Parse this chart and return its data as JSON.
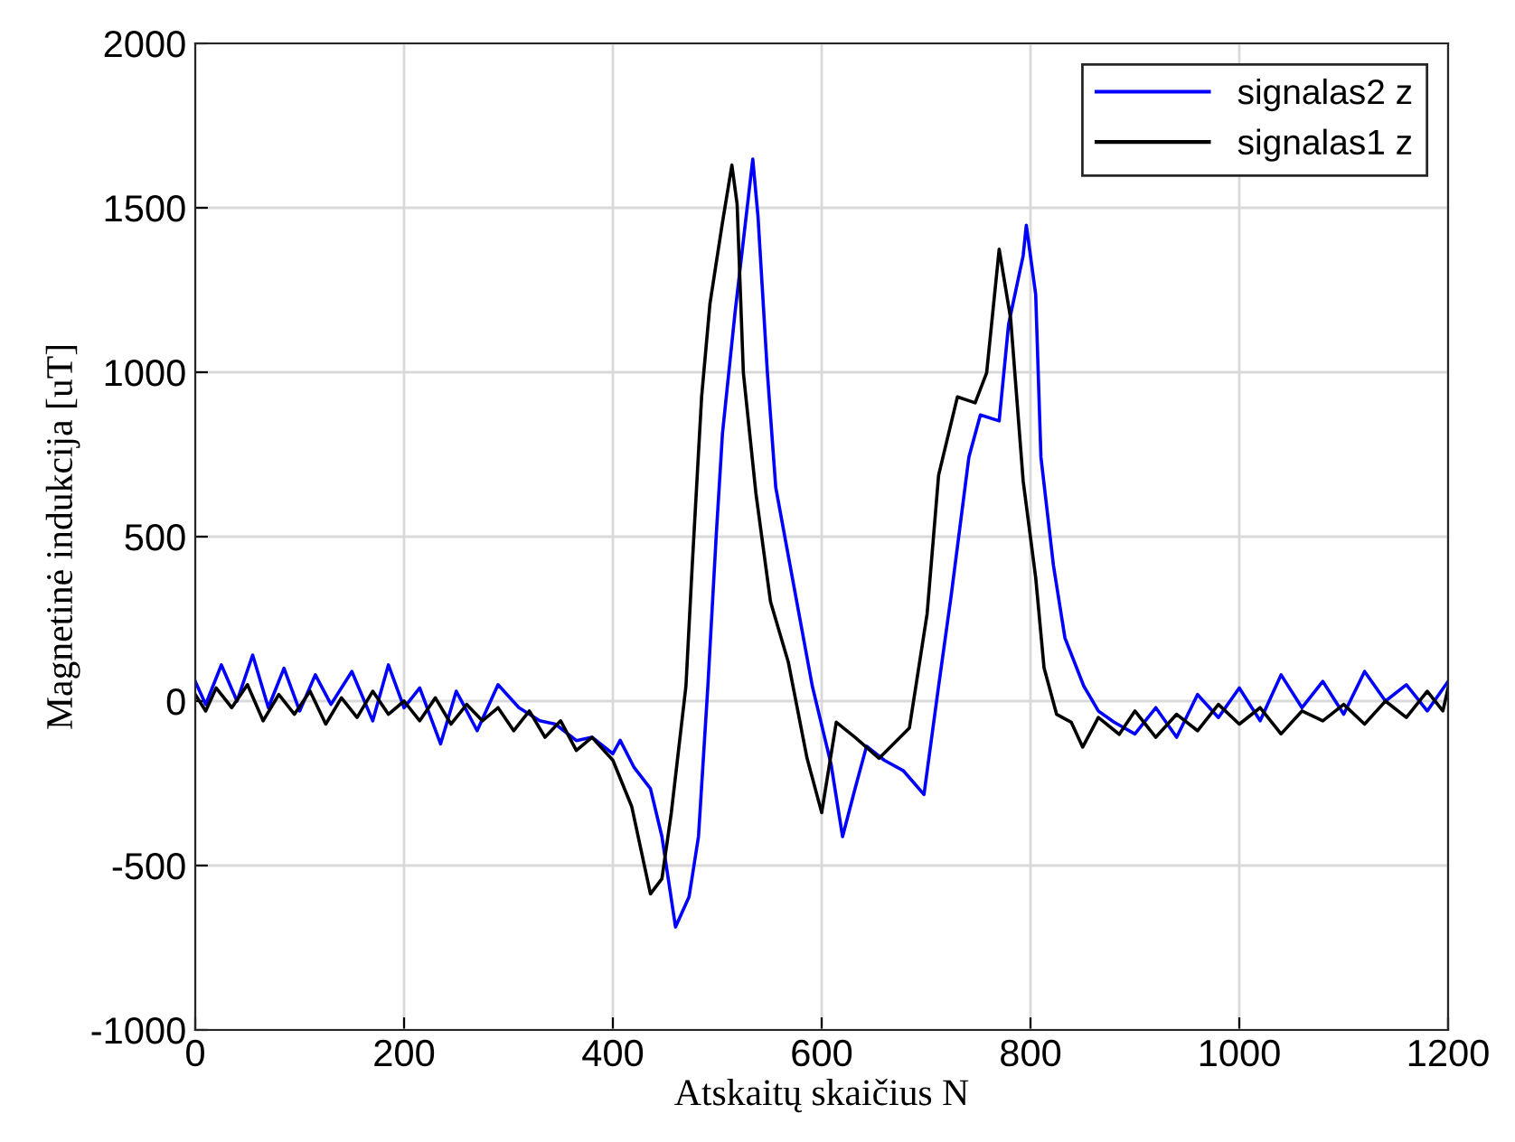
{
  "chart_data": {
    "type": "line",
    "xlabel": "Atskaitų skaičius N",
    "ylabel": "Magnetinė indukcija [uT]",
    "xlim": [
      0,
      1200
    ],
    "xticks": [
      0,
      200,
      400,
      600,
      800,
      1000,
      1200
    ],
    "ylim": [
      -1000,
      2000
    ],
    "yticks": [
      -1000,
      -500,
      0,
      500,
      1000,
      1500,
      2000
    ],
    "grid": true,
    "legend": "top right",
    "marker": "none",
    "line_style": "solid",
    "series": [
      {
        "name": "signalas2 z",
        "color": "#0000ff",
        "x": [
          0,
          10,
          25,
          40,
          55,
          70,
          85,
          100,
          115,
          130,
          150,
          170,
          185,
          200,
          215,
          235,
          250,
          270,
          290,
          310,
          330,
          345,
          365,
          380,
          400,
          407,
          420,
          436,
          447,
          460,
          473,
          482,
          491,
          499,
          505,
          517,
          534,
          539,
          548,
          556,
          574,
          591,
          609,
          620,
          632,
          643,
          660,
          678,
          698,
          712,
          724,
          741,
          752,
          770,
          779,
          793,
          796,
          805,
          810,
          822,
          833,
          851,
          865,
          880,
          900,
          920,
          940,
          960,
          980,
          1000,
          1020,
          1040,
          1060,
          1080,
          1100,
          1120,
          1140,
          1160,
          1180,
          1200
        ],
        "values": [
          60,
          -10,
          110,
          0,
          140,
          -20,
          100,
          -30,
          80,
          -10,
          90,
          -60,
          110,
          -20,
          40,
          -130,
          30,
          -90,
          50,
          -20,
          -60,
          -70,
          -120,
          -110,
          -160,
          -119,
          -200,
          -266,
          -412,
          -687,
          -595,
          -412,
          46,
          504,
          815,
          1181,
          1648,
          1474,
          998,
          650,
          339,
          46,
          -192,
          -412,
          -266,
          -137,
          -180,
          -211,
          -284,
          46,
          320,
          742,
          870,
          852,
          1145,
          1355,
          1447,
          1236,
          742,
          412,
          192,
          46,
          -30,
          -64,
          -100,
          -20,
          -110,
          20,
          -50,
          40,
          -60,
          80,
          -20,
          60,
          -40,
          90,
          0,
          50,
          -30,
          60
        ]
      },
      {
        "name": "signalas1 z",
        "color": "#000000",
        "x": [
          0,
          10,
          20,
          35,
          50,
          65,
          80,
          95,
          110,
          125,
          140,
          155,
          170,
          185,
          200,
          215,
          230,
          245,
          260,
          275,
          290,
          305,
          320,
          335,
          350,
          365,
          380,
          400,
          418,
          436,
          447,
          456,
          470,
          476,
          485,
          493,
          505,
          514,
          519,
          525,
          537,
          551,
          568,
          586,
          600,
          614,
          632,
          655,
          684,
          701,
          712,
          730,
          747,
          758,
          770,
          781,
          793,
          805,
          813,
          825,
          839,
          850,
          865,
          885,
          900,
          920,
          940,
          960,
          980,
          1000,
          1020,
          1040,
          1060,
          1080,
          1100,
          1120,
          1140,
          1160,
          1180,
          1195,
          1200
        ],
        "values": [
          20,
          -30,
          40,
          -20,
          50,
          -60,
          20,
          -40,
          30,
          -70,
          10,
          -50,
          30,
          -40,
          0,
          -60,
          10,
          -70,
          -10,
          -60,
          -20,
          -90,
          -30,
          -110,
          -60,
          -150,
          -110,
          -180,
          -320,
          -586,
          -540,
          -339,
          46,
          412,
          925,
          1209,
          1456,
          1630,
          1511,
          998,
          632,
          302,
          119,
          -174,
          -339,
          -64,
          -110,
          -174,
          -82,
          266,
          687,
          925,
          907,
          998,
          1374,
          1163,
          669,
          375,
          101,
          -40,
          -64,
          -140,
          -50,
          -101,
          -30,
          -110,
          -40,
          -90,
          -10,
          -70,
          -20,
          -100,
          -30,
          -60,
          -10,
          -70,
          0,
          -50,
          30,
          -30,
          40
        ]
      }
    ]
  }
}
